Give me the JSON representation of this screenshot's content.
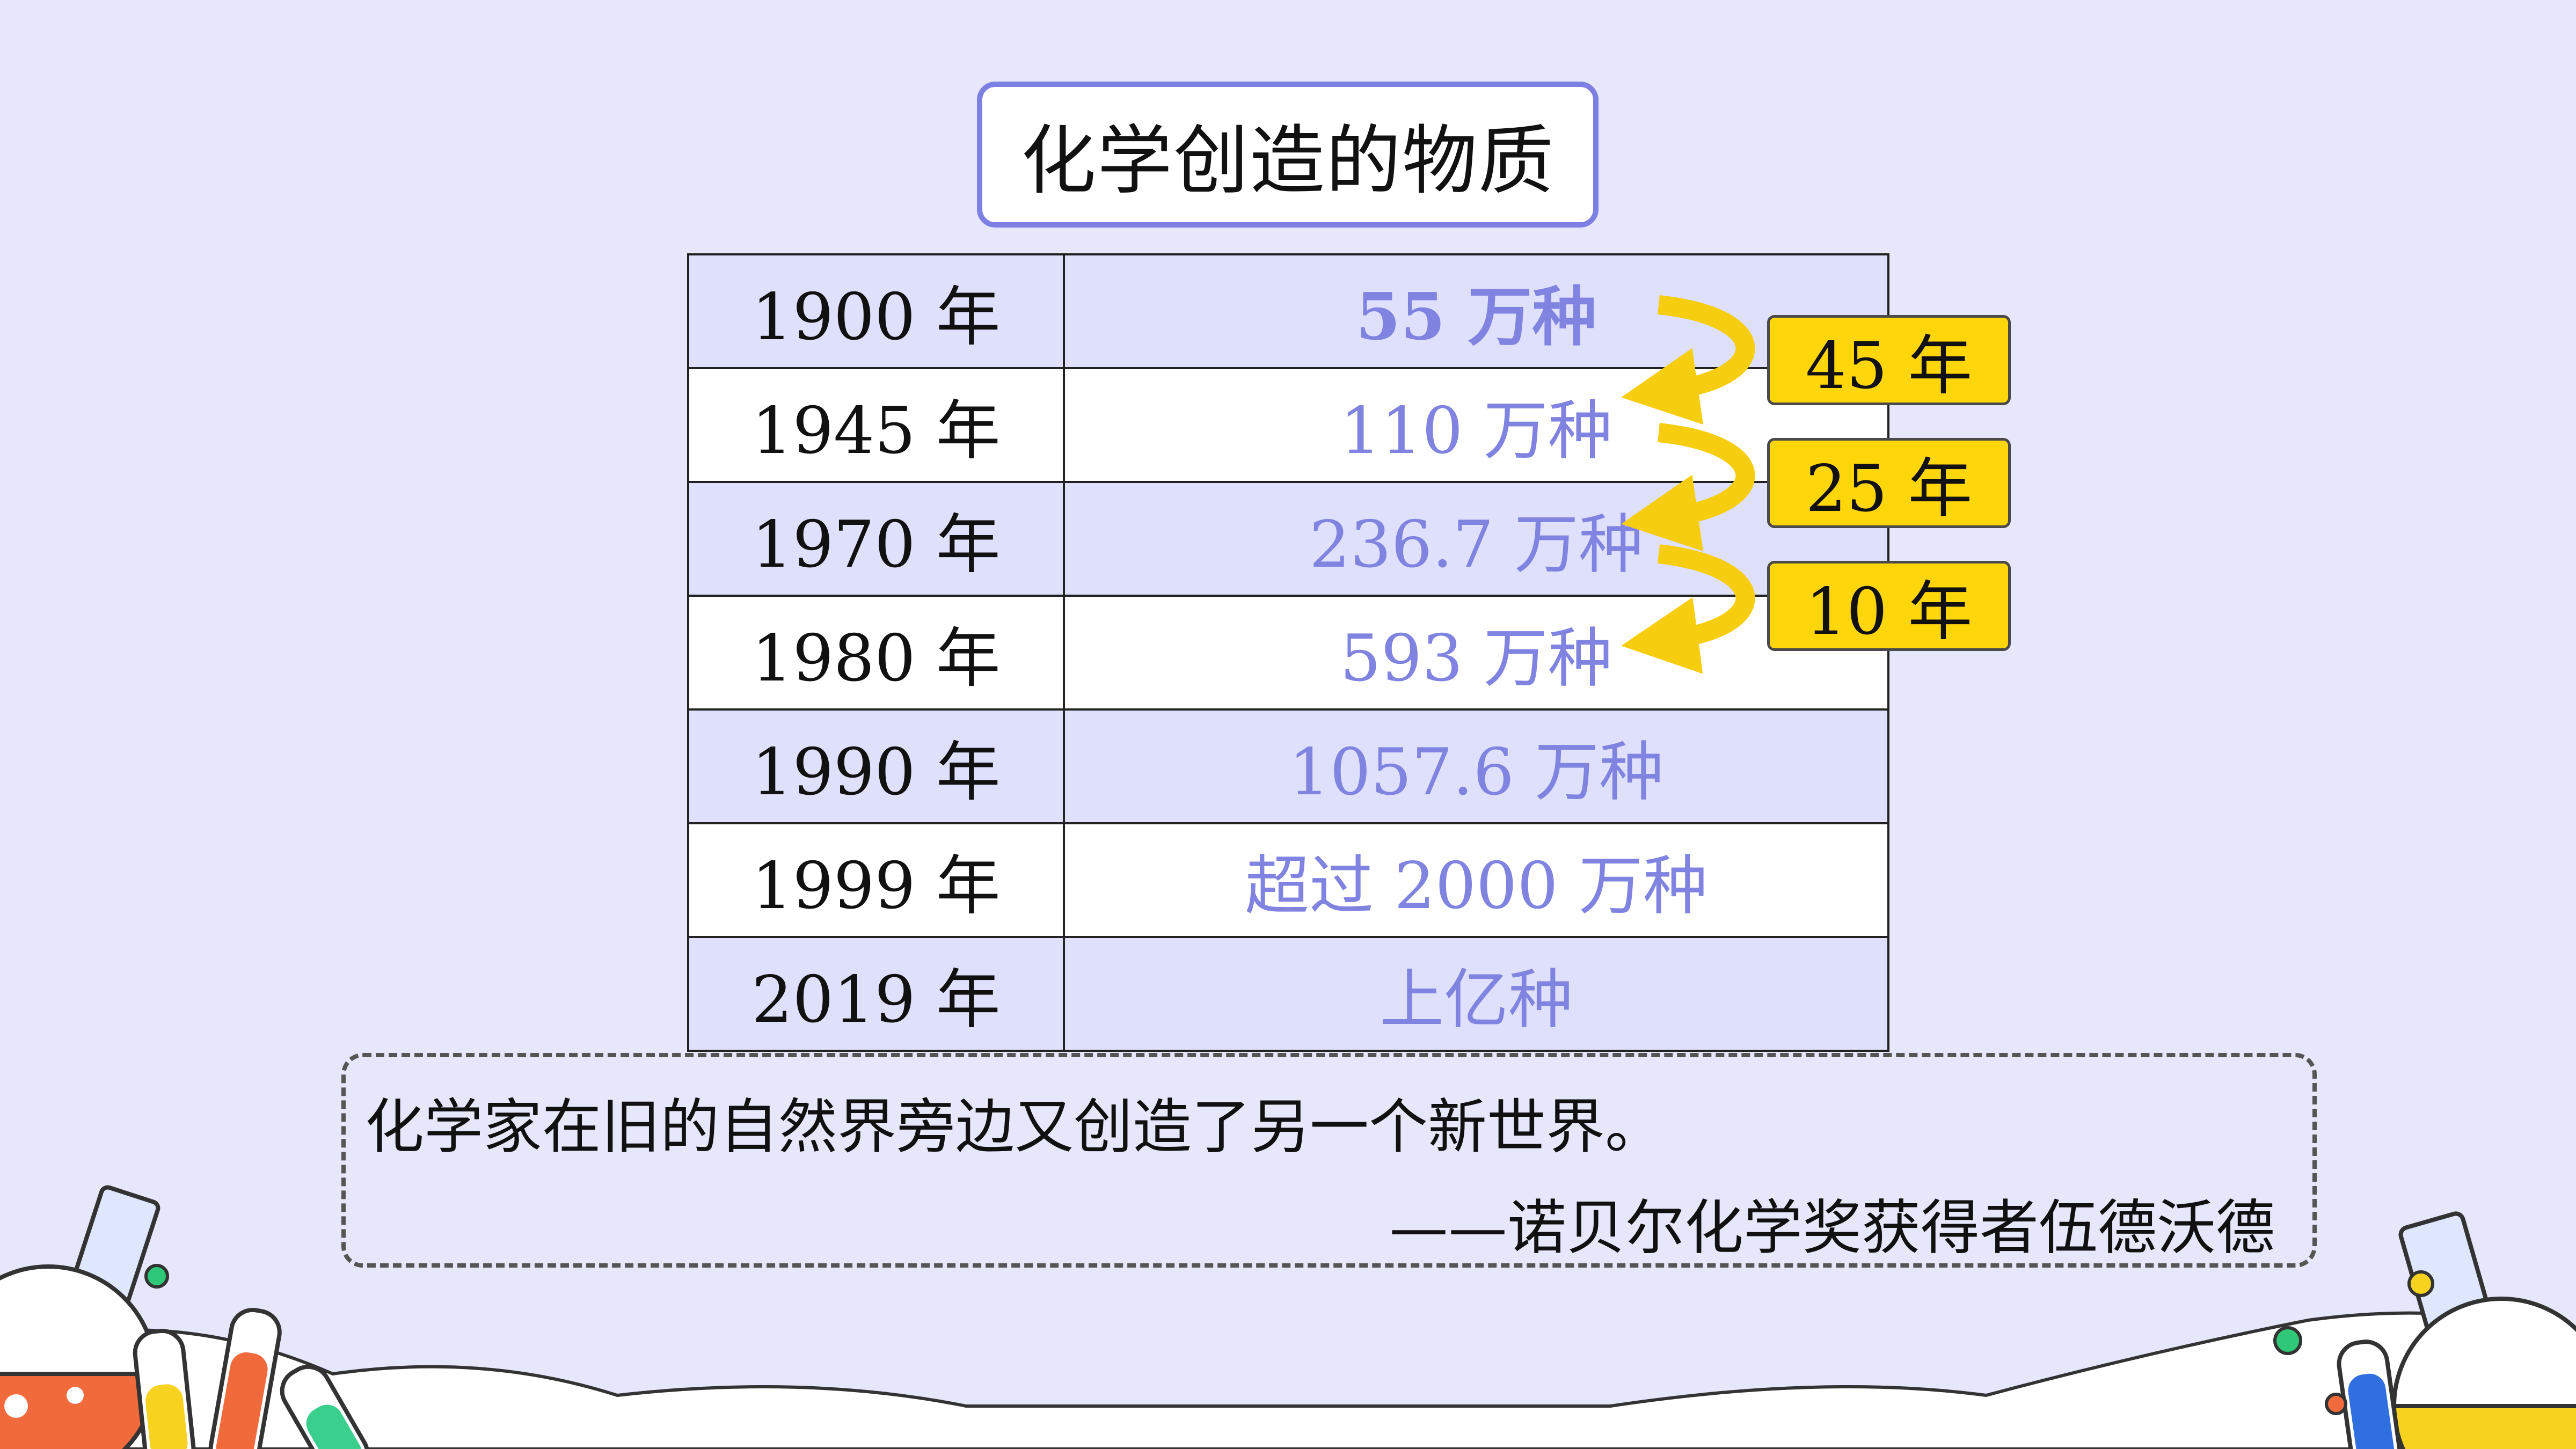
{
  "title": "化学创造的物质",
  "table": {
    "rows": [
      {
        "year": "1900 年",
        "count": "55 万种"
      },
      {
        "year": "1945 年",
        "count": "110 万种"
      },
      {
        "year": "1970 年",
        "count": "236.7 万种"
      },
      {
        "year": "1980 年",
        "count": "593 万种"
      },
      {
        "year": "1990 年",
        "count": "1057.6 万种"
      },
      {
        "year": "1999 年",
        "count": "超过 2000 万种"
      },
      {
        "year": "2019 年",
        "count": "上亿种"
      }
    ]
  },
  "intervals": [
    "45 年",
    "25 年",
    "10 年"
  ],
  "quote": {
    "text": "化学家在旧的自然界旁边又创造了另一个新世界。",
    "author": "——诺贝尔化学奖获得者伍德沃德"
  },
  "colors": {
    "background": "#e7e7fb",
    "accent": "#7d80e2",
    "count_text": "#8084e0",
    "label_fill": "#ffd60a"
  }
}
